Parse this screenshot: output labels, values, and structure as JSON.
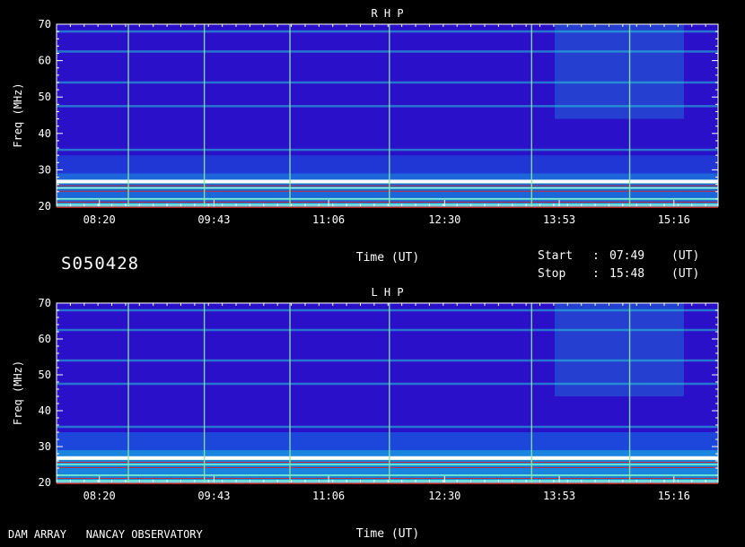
{
  "observation_id": "S050428",
  "footer": {
    "instrument": "DAM ARRAY   NANCAY OBSERVATORY"
  },
  "time_info": {
    "start_label": "Start",
    "start_sep": ":",
    "start_value": "07:49",
    "start_unit": "(UT)",
    "stop_label": "Stop",
    "stop_sep": ":",
    "stop_value": "15:48",
    "stop_unit": "(UT)"
  },
  "colors": {
    "background": "#2a10c8",
    "frame": "#ffffff",
    "text": "#ffffff"
  },
  "chart_data": [
    {
      "type": "heatmap",
      "title": "R H P",
      "xlabel": "Time (UT)",
      "ylabel": "Freq (MHz)",
      "x_ticks": [
        "08:20",
        "09:43",
        "11:06",
        "12:30",
        "13:53",
        "15:16"
      ],
      "y_ticks": [
        20,
        30,
        40,
        50,
        60,
        70
      ],
      "ylim": [
        20,
        70
      ],
      "xlim": [
        "07:49",
        "15:48"
      ],
      "intense_bands_mhz": [
        20.5,
        22,
        25,
        26.5,
        35.5,
        47.5,
        54,
        62.5,
        68
      ],
      "vertical_bursts_ut": [
        "08:41",
        "09:36",
        "10:38",
        "11:50",
        "13:33",
        "14:44"
      ]
    },
    {
      "type": "heatmap",
      "title": "L H P",
      "xlabel": "Time (UT)",
      "ylabel": "Freq (MHz)",
      "x_ticks": [
        "08:20",
        "09:43",
        "11:06",
        "12:30",
        "13:53",
        "15:16"
      ],
      "y_ticks": [
        20,
        30,
        40,
        50,
        60,
        70
      ],
      "ylim": [
        20,
        70
      ],
      "xlim": [
        "07:49",
        "15:48"
      ],
      "intense_bands_mhz": [
        20.5,
        22,
        25,
        26.5,
        35.5,
        47.5,
        54,
        62.5,
        68
      ],
      "vertical_bursts_ut": [
        "08:41",
        "09:36",
        "10:38",
        "11:50",
        "13:33",
        "14:44"
      ]
    }
  ]
}
